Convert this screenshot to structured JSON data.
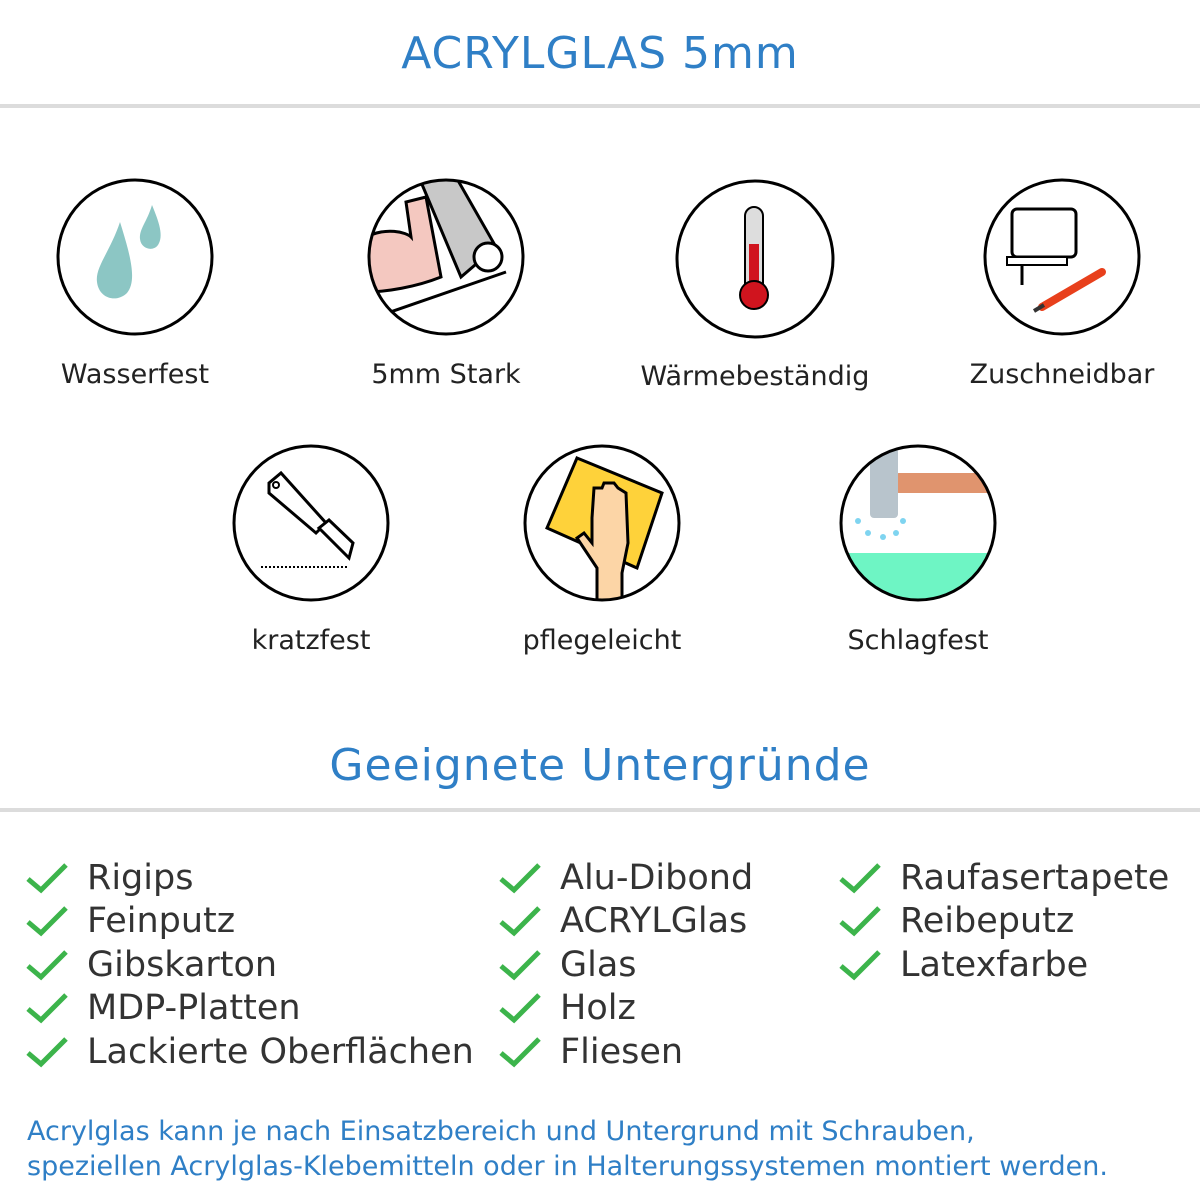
{
  "header": {
    "title": "ACRYLGLAS 5mm"
  },
  "features": [
    {
      "label": "Wasserfest",
      "icon": "water-drops-icon"
    },
    {
      "label": "5mm Stark",
      "icon": "strong-arm-icon"
    },
    {
      "label": "Wärmebeständig",
      "icon": "thermometer-icon"
    },
    {
      "label": "Zuschneidbar",
      "icon": "jigsaw-cutter-icon"
    },
    {
      "label": "kratzfest",
      "icon": "utility-knife-icon"
    },
    {
      "label": "pflegeleicht",
      "icon": "hand-cloth-icon"
    },
    {
      "label": "Schlagfest",
      "icon": "hammer-icon"
    }
  ],
  "surfaces": {
    "title": "Geeignete Untergründe",
    "columns": [
      [
        "Rigips",
        "Feinputz",
        "Gibskarton",
        "MDP-Platten",
        "Lackierte Oberflächen"
      ],
      [
        "Alu-Dibond",
        "ACRYLGlas",
        "Glas",
        "Holz",
        "Fliesen"
      ],
      [
        "Raufasertapete",
        "Reibeputz",
        "Latexfarbe"
      ]
    ]
  },
  "note": {
    "line1": "Acrylglas kann je nach Einsatzbereich und Untergrund mit Schrauben,",
    "line2": "speziellen Acrylglas-Klebemitteln oder in Halterungssystemen montiert werden."
  },
  "colors": {
    "accent": "#2f7fc6",
    "check": "#3cb44b",
    "text": "#333333"
  }
}
